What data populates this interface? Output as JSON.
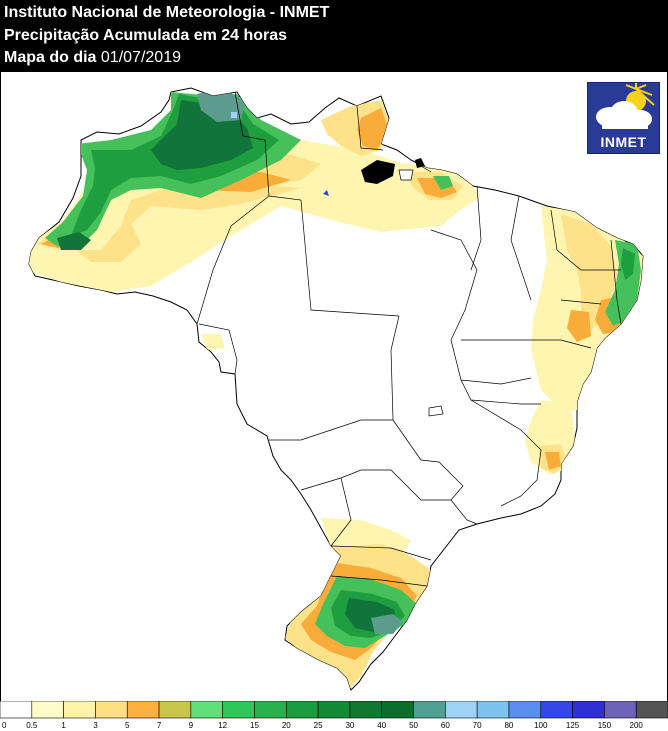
{
  "header": {
    "line1": "Instituto Nacional de Meteorologia - INMET",
    "line2": "Precipitação Acumulada em 24 horas",
    "line3_label": "Mapa do dia",
    "date": "01/07/2019"
  },
  "logo": {
    "text": "INMET",
    "icon": "sun-cloud-icon"
  },
  "legend": {
    "labels": [
      "0",
      "0.5",
      "1",
      "3",
      "5",
      "7",
      "9",
      "12",
      "15",
      "20",
      "25",
      "30",
      "40",
      "50",
      "60",
      "70",
      "80",
      "100",
      "125",
      "150",
      "200"
    ],
    "colors": [
      "#ffffff",
      "#fdfbc7",
      "#fef3a7",
      "#fedf82",
      "#fcb040",
      "#c9c74b",
      "#5edf7a",
      "#2fc65a",
      "#29b04b",
      "#1b9c3e",
      "#138b36",
      "#0f7a2f",
      "#0c6e2a",
      "#4f9f93",
      "#9fd3f5",
      "#7ec2f0",
      "#5a8ff0",
      "#3448e6",
      "#2f2fd6",
      "#6e62b9",
      "#545454"
    ]
  },
  "colors": {
    "light_yellow": "#fdf5b0",
    "yellow": "#fde28a",
    "orange": "#f9ac3a",
    "light_green": "#45c05a",
    "green": "#1f9e3f",
    "dark_green": "#11743a",
    "teal": "#5c9c8c"
  }
}
